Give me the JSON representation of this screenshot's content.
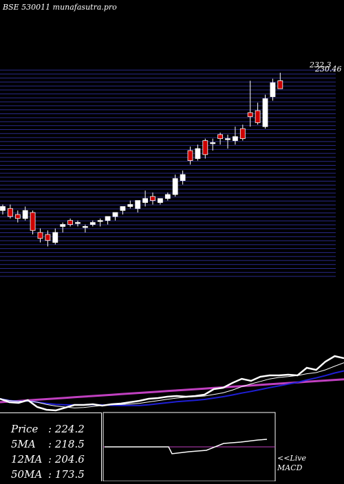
{
  "title": "BSE 530011 munafasutra.pro",
  "price_labels": [
    "232.3",
    "230.46",
    "",
    "",
    "",
    "",
    "",
    "",
    "",
    "",
    "",
    "",
    "",
    "",
    "",
    "",
    "",
    "",
    "",
    "",
    "",
    "",
    "",
    "",
    "",
    "",
    "",
    "",
    "",
    "",
    "",
    "",
    "",
    "",
    "",
    "",
    "",
    "",
    "",
    "",
    "",
    "",
    "",
    "",
    "",
    "",
    "",
    "",
    "",
    "",
    "",
    "",
    ""
  ],
  "info": {
    "price_label": "Price",
    "price_value": ": 224.2",
    "ma5_label": "5MA",
    "ma5_value": ": 218.5",
    "ma12_label": "12MA",
    "ma12_value": ": 204.6",
    "ma50_label": "50MA",
    "ma50_value": ": 173.5"
  },
  "macd": {
    "line1": "<<Live",
    "line2": "MACD"
  },
  "colors": {
    "up": "#ffffff",
    "down": "#cc0000",
    "grid": "#2a2a8a",
    "ma_fast": "#ffffff",
    "ma_mid": "#1f1fd6",
    "ma_slow": "#c040c0"
  },
  "chart_data": {
    "type": "candlestick",
    "ylim": [
      130,
      234
    ],
    "candles": [
      {
        "o": 163,
        "h": 166,
        "l": 161,
        "c": 165
      },
      {
        "o": 164,
        "h": 166,
        "l": 159,
        "c": 160
      },
      {
        "o": 161,
        "h": 163,
        "l": 157,
        "c": 159
      },
      {
        "o": 159,
        "h": 165,
        "l": 158,
        "c": 163
      },
      {
        "o": 162,
        "h": 163,
        "l": 151,
        "c": 153
      },
      {
        "o": 152,
        "h": 154,
        "l": 147,
        "c": 149
      },
      {
        "o": 151,
        "h": 153,
        "l": 145,
        "c": 148
      },
      {
        "o": 147,
        "h": 154,
        "l": 146,
        "c": 152
      },
      {
        "o": 155,
        "h": 157,
        "l": 152,
        "c": 156
      },
      {
        "o": 158,
        "h": 159,
        "l": 155,
        "c": 156
      },
      {
        "o": 157,
        "h": 158,
        "l": 155,
        "c": 157
      },
      {
        "o": 155,
        "h": 156,
        "l": 152,
        "c": 155
      },
      {
        "o": 156,
        "h": 158,
        "l": 155,
        "c": 157
      },
      {
        "o": 158,
        "h": 159,
        "l": 155,
        "c": 158
      },
      {
        "o": 158,
        "h": 159,
        "l": 156,
        "c": 160
      },
      {
        "o": 160,
        "h": 161,
        "l": 158,
        "c": 162
      },
      {
        "o": 163,
        "h": 164,
        "l": 161,
        "c": 165
      },
      {
        "o": 165,
        "h": 168,
        "l": 164,
        "c": 166
      },
      {
        "o": 164,
        "h": 167,
        "l": 162,
        "c": 168
      },
      {
        "o": 167,
        "h": 173,
        "l": 165,
        "c": 169
      },
      {
        "o": 170,
        "h": 172,
        "l": 166,
        "c": 168
      },
      {
        "o": 167,
        "h": 168,
        "l": 166,
        "c": 169
      },
      {
        "o": 169,
        "h": 172,
        "l": 168,
        "c": 171
      },
      {
        "o": 171,
        "h": 181,
        "l": 170,
        "c": 179
      },
      {
        "o": 178,
        "h": 183,
        "l": 176,
        "c": 181
      },
      {
        "o": 193,
        "h": 195,
        "l": 186,
        "c": 188
      },
      {
        "o": 189,
        "h": 196,
        "l": 188,
        "c": 194
      },
      {
        "o": 198,
        "h": 199,
        "l": 189,
        "c": 191
      },
      {
        "o": 197,
        "h": 199,
        "l": 193,
        "c": 197
      },
      {
        "o": 201,
        "h": 202,
        "l": 196,
        "c": 199
      },
      {
        "o": 199,
        "h": 201,
        "l": 194,
        "c": 199
      },
      {
        "o": 198,
        "h": 205,
        "l": 196,
        "c": 200
      },
      {
        "o": 204,
        "h": 206,
        "l": 198,
        "c": 199
      },
      {
        "o": 212,
        "h": 228,
        "l": 205,
        "c": 210
      },
      {
        "o": 213,
        "h": 217,
        "l": 206,
        "c": 207
      },
      {
        "o": 205,
        "h": 221,
        "l": 204,
        "c": 219
      },
      {
        "o": 220,
        "h": 229,
        "l": 218,
        "c": 227
      },
      {
        "o": 228,
        "h": 232,
        "l": 224,
        "c": 224
      }
    ]
  }
}
